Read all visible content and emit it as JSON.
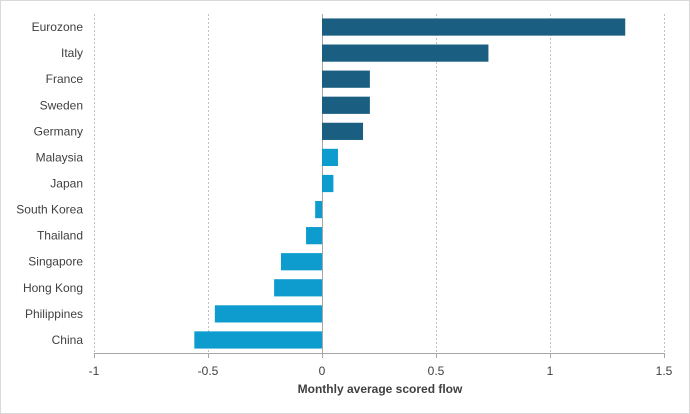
{
  "chart_data": {
    "type": "bar",
    "orientation": "horizontal",
    "title": "",
    "xlabel": "Monthly average scored flow",
    "ylabel": "",
    "xlim": [
      -1,
      1.5
    ],
    "xticks": [
      -1,
      -0.5,
      0,
      0.5,
      1,
      1.5
    ],
    "xtick_labels": [
      "-1",
      "-0.5",
      "0",
      "0.5",
      "1",
      "1.5"
    ],
    "grid": "vertical",
    "legend": "none",
    "categories": [
      "Eurozone",
      "Italy",
      "France",
      "Sweden",
      "Germany",
      "Malaysia",
      "Japan",
      "South Korea",
      "Thailand",
      "Singapore",
      "Hong Kong",
      "Philippines",
      "China"
    ],
    "values": [
      1.33,
      0.73,
      0.21,
      0.21,
      0.18,
      0.07,
      0.05,
      -0.03,
      -0.07,
      -0.18,
      -0.21,
      -0.47,
      -0.56
    ],
    "group_colors": {
      "dark": "#1a5f82",
      "light": "#0e9ccf"
    },
    "bar_groups": [
      "dark",
      "dark",
      "dark",
      "dark",
      "dark",
      "light",
      "light",
      "light",
      "light",
      "light",
      "light",
      "light",
      "light"
    ]
  }
}
